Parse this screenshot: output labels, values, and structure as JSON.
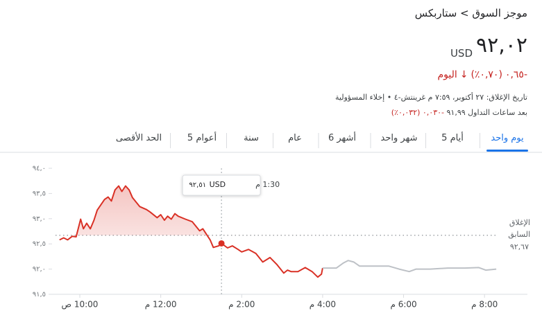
{
  "header": {
    "breadcrumb": "موجز السوق > ستاربكس",
    "price": "٩٢,٠٢",
    "currency": "USD",
    "change": "‎-٠,٦٥",
    "change_percent": "(٠,٧٠٪)",
    "period": "اليوم",
    "close_info": "تاريخ الإغلاق: ٢٧ أكتوبر، ٧:٥٩ م غرينتش-٤",
    "disclaimer": "إخلاء المسؤولية",
    "after_hours_label": "بعد ساعات التداول",
    "after_hours_price": "٩١,٩٩",
    "after_hours_change": "‎-٠,٠٣٠ (٠,٠٣٢٪)"
  },
  "tabs": [
    "يوم واحد",
    "5 أيام",
    "شهر واحد",
    "6 أشهر",
    "عام",
    "سنة",
    "5 أعوام",
    "الحد الأقصى"
  ],
  "selected_tab": 0,
  "chart_data": {
    "type": "line",
    "xlim": [
      9.4,
      21.06
    ],
    "xticks": [
      {
        "value": 10,
        "label": "10:00 ص"
      },
      {
        "value": 12,
        "label": "12:00 م"
      },
      {
        "value": 14,
        "label": "2:00 م"
      },
      {
        "value": 16,
        "label": "4:00 م"
      },
      {
        "value": 18,
        "label": "6:00 م"
      },
      {
        "value": 20,
        "label": "8:00 م"
      }
    ],
    "ylim": [
      91.5,
      94.0
    ],
    "yticks": [
      {
        "value": 91.5,
        "label": "٩١,٥"
      },
      {
        "value": 92.0,
        "label": "٩٢,٠"
      },
      {
        "value": 92.5,
        "label": "٩٢,٥"
      },
      {
        "value": 93.0,
        "label": "٩٣,٠"
      },
      {
        "value": 93.5,
        "label": "٩٣,٥"
      },
      {
        "value": 94.0,
        "label": "٩٤,٠"
      }
    ],
    "series": [
      {
        "color": "#d93025",
        "x": [
          9.5,
          9.6,
          9.7,
          9.81,
          9.91,
          10.02,
          10.09,
          10.17,
          10.26,
          10.35,
          10.43,
          10.61,
          10.7,
          10.78,
          10.87,
          10.96,
          11.04,
          11.13,
          11.22,
          11.3,
          11.48,
          11.65,
          11.74,
          11.91,
          12.0,
          12.09,
          12.17,
          12.26,
          12.35,
          12.43,
          12.61,
          12.78,
          12.96,
          13.04,
          13.22,
          13.3,
          13.43,
          13.5,
          13.65,
          13.77,
          13.91,
          14.0,
          14.17,
          14.35,
          14.52,
          14.7,
          14.87,
          15.04,
          15.13,
          15.22,
          15.39,
          15.57,
          15.74,
          15.88,
          15.97,
          16.0
        ],
        "values": [
          92.58,
          92.62,
          92.58,
          92.65,
          92.64,
          92.99,
          92.8,
          92.91,
          92.8,
          92.97,
          93.17,
          93.38,
          93.43,
          93.35,
          93.57,
          93.65,
          93.54,
          93.65,
          93.57,
          93.42,
          93.24,
          93.18,
          93.13,
          93.02,
          93.08,
          92.97,
          93.05,
          92.99,
          93.1,
          93.05,
          92.99,
          92.94,
          92.76,
          92.8,
          92.58,
          92.43,
          92.46,
          92.51,
          92.42,
          92.46,
          92.39,
          92.34,
          92.39,
          92.31,
          92.14,
          92.23,
          92.09,
          91.92,
          91.98,
          91.95,
          91.95,
          92.03,
          91.95,
          91.84,
          91.9,
          92.02
        ]
      },
      {
        "color": "#bdc1c6",
        "x": [
          16.0,
          16.34,
          16.51,
          16.63,
          16.77,
          16.91,
          17.29,
          17.63,
          17.89,
          18.14,
          18.31,
          18.66,
          19.09,
          19.51,
          19.86,
          20.03,
          20.29
        ],
        "values": [
          92.02,
          92.02,
          92.12,
          92.17,
          92.14,
          92.06,
          92.06,
          92.06,
          92.0,
          91.95,
          92.0,
          92.0,
          92.02,
          92.02,
          92.03,
          91.98,
          92.0
        ]
      }
    ],
    "previous_close": {
      "label": "الإغلاق السابق",
      "value": {
        "value": 92.67,
        "label": "٩٢,٦٧"
      }
    },
    "tooltip": {
      "time": "1:30 م",
      "currency": "USD",
      "x": 13.5,
      "value": {
        "value": 92.51,
        "label": "٩٢,٥١"
      }
    }
  }
}
